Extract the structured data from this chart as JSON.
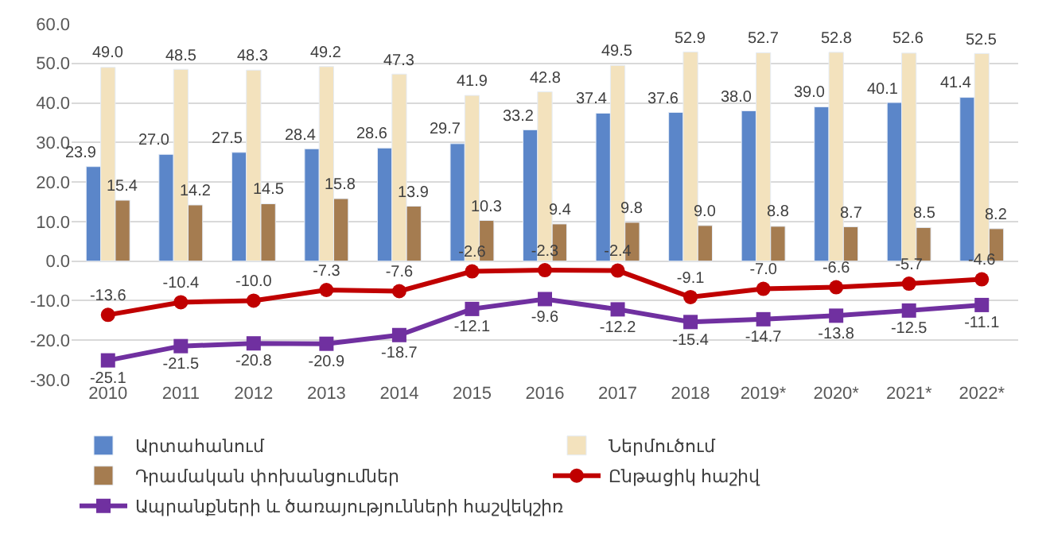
{
  "chart_data": {
    "type": "bar",
    "categories": [
      "2010",
      "2011",
      "2012",
      "2013",
      "2014",
      "2015",
      "2016",
      "2017",
      "2018",
      "2019*",
      "2020*",
      "2021*",
      "2022*"
    ],
    "series": [
      {
        "name": "Արտահանում",
        "color": "#5b86c9",
        "values": [
          23.9,
          27.0,
          27.5,
          28.4,
          28.6,
          29.7,
          33.2,
          37.4,
          37.6,
          38.0,
          39.0,
          40.1,
          41.4
        ],
        "value_labels": [
          "23.9",
          "27.0",
          "27.5",
          "28.4",
          "28.6",
          "29.7",
          "33.2",
          "37.4",
          "37.6",
          "38.0",
          "39.0",
          "40.1",
          "41.4"
        ]
      },
      {
        "name": "Ներմուծում",
        "color": "#f3e2bd",
        "values": [
          49.0,
          48.5,
          48.3,
          49.2,
          47.3,
          41.9,
          42.8,
          49.5,
          52.9,
          52.7,
          52.8,
          52.6,
          52.5
        ],
        "value_labels": [
          "49.0",
          "48.5",
          "48.3",
          "49.2",
          "47.3",
          "41.9",
          "42.8",
          "49.5",
          "52.9",
          "52.7",
          "52.8",
          "52.6",
          "52.5"
        ]
      },
      {
        "name": "Դրամական փոխանցումներ",
        "color": "#a57c50",
        "values": [
          15.4,
          14.2,
          14.5,
          15.8,
          13.9,
          10.3,
          9.4,
          9.8,
          9.0,
          8.8,
          8.7,
          8.5,
          8.2
        ],
        "value_labels": [
          "15.4",
          "14.2",
          "14.5",
          "15.8",
          "13.9",
          "10.3",
          "9.4",
          "9.8",
          "9.0",
          "8.8",
          "8.7",
          "8.5",
          "8.2"
        ]
      },
      {
        "name": "Ընթացիկ հաշիվ",
        "type": "line",
        "marker": "circle",
        "color": "#c00000",
        "values": [
          -13.6,
          -10.4,
          -10.0,
          -7.3,
          -7.6,
          -2.6,
          -2.3,
          -2.4,
          -9.1,
          -7.0,
          -6.6,
          -5.7,
          -4.6
        ],
        "value_labels": [
          "-13.6",
          "-10.4",
          "-10.0",
          "-7.3",
          "-7.6",
          "-2.6",
          "-2.3",
          "-2.4",
          "-9.1",
          "-7.0",
          "-6.6",
          "-5.7",
          "-4.6"
        ]
      },
      {
        "name": "Ապրանքների և ծառայությունների հաշվեկշիռ",
        "type": "line",
        "marker": "square",
        "color": "#7030a0",
        "values": [
          -25.1,
          -21.5,
          -20.8,
          -20.9,
          -18.7,
          -12.1,
          -9.6,
          -12.2,
          -15.4,
          -14.7,
          -13.8,
          -12.5,
          -11.1
        ],
        "value_labels": [
          "-25.1",
          "-21.5",
          "-20.8",
          "-20.9",
          "-18.7",
          "-12.1",
          "-9.6",
          "-12.2",
          "-15.4",
          "-14.7",
          "-13.8",
          "-12.5",
          "-11.1"
        ]
      }
    ],
    "ylim": [
      -30,
      60
    ],
    "yticks": [
      {
        "value": -30,
        "label": "-30.0"
      },
      {
        "value": -20,
        "label": "-20.0"
      },
      {
        "value": -10,
        "label": "-10.0"
      },
      {
        "value": 0,
        "label": "0.0"
      },
      {
        "value": 10,
        "label": "10.0"
      },
      {
        "value": 20,
        "label": "20.0"
      },
      {
        "value": 30,
        "label": "30.0"
      },
      {
        "value": 40,
        "label": "40.0"
      },
      {
        "value": 50,
        "label": "50.0"
      },
      {
        "value": 60,
        "label": "60.0"
      }
    ],
    "grid": "y",
    "legend": "bottom"
  }
}
